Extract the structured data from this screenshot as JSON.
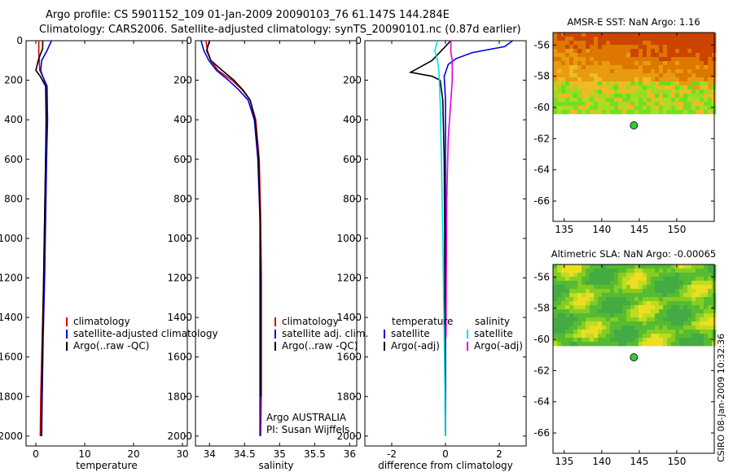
{
  "header": {
    "line1": "Argo profile: CS 5901152_109 01-Jan-2009 20090103_76 61.147S 144.284E",
    "line2": "Climatology: CARS2006. Satellite-adjusted climatology: synTS_20090101.nc (0.87d earlier)"
  },
  "footer": {
    "credit": "CSIRO 08-Jan-2009 10:32:36"
  },
  "colors": {
    "red": "#e00000",
    "blue": "#0000e0",
    "black": "#000000",
    "cyan": "#00e0e0",
    "magenta": "#e000e0",
    "marker": "#33cc33"
  },
  "chart_data": [
    {
      "id": "temperature",
      "type": "line",
      "xlabel": "temperature",
      "xlim": [
        -2,
        31
      ],
      "ylim": [
        0,
        2050
      ],
      "y_reversed": true,
      "xticks": [
        0,
        10,
        20,
        30
      ],
      "yticks": [
        0,
        200,
        400,
        600,
        800,
        1000,
        1200,
        1400,
        1600,
        1800,
        2000
      ],
      "legend": {
        "placement": "lower-right",
        "items": [
          "climatology",
          "satellite-adjusted climatology",
          "Argo(..raw -QC)"
        ]
      },
      "series": [
        {
          "name": "climatology",
          "color": "red",
          "x": [
            0.6,
            0.6,
            0.7,
            0.8,
            1.4,
            2.1,
            2.2,
            2.0,
            1.8,
            1.6,
            1.3,
            1.0,
            0.9
          ],
          "y": [
            0,
            60,
            100,
            150,
            180,
            230,
            400,
            600,
            900,
            1200,
            1500,
            1800,
            2000
          ]
        },
        {
          "name": "satellite-adjusted climatology",
          "color": "blue",
          "x": [
            3.2,
            2.3,
            1.2,
            1.0,
            1.4,
            2.3,
            2.4,
            2.2,
            2.0,
            1.8,
            1.5,
            1.3,
            1.2
          ],
          "y": [
            0,
            50,
            100,
            150,
            180,
            230,
            400,
            600,
            900,
            1200,
            1500,
            1800,
            2000
          ]
        },
        {
          "name": "Argo(..raw -QC)",
          "color": "black",
          "x": [
            1.4,
            1.4,
            0.6,
            0.0,
            0.9,
            2.0,
            2.1,
            2.0,
            1.8,
            1.6,
            1.4,
            1.2,
            1.1
          ],
          "y": [
            0,
            40,
            90,
            150,
            180,
            230,
            400,
            600,
            900,
            1200,
            1500,
            1800,
            2000
          ]
        }
      ]
    },
    {
      "id": "salinity",
      "type": "line",
      "xlabel": "salinity",
      "xlim": [
        33.8,
        36.1
      ],
      "ylim": [
        0,
        2050
      ],
      "y_reversed": true,
      "xticks": [
        34,
        34.5,
        35,
        35.5,
        36
      ],
      "xtick_labels": [
        "34",
        "34.5",
        "35",
        "35.5",
        "36"
      ],
      "yticks": [
        0,
        200,
        400,
        600,
        800,
        1000,
        1200,
        1400,
        1600,
        1800,
        2000
      ],
      "legend": {
        "placement": "lower-right",
        "items": [
          "climatology",
          "satellite adj. clim.",
          "Argo(..raw -QC)"
        ]
      },
      "annotation": {
        "line1": "Argo AUSTRALIA",
        "line2": "PI: Susan Wijffels"
      },
      "series": [
        {
          "name": "climatology",
          "color": "red",
          "x": [
            33.95,
            33.97,
            34.02,
            34.12,
            34.32,
            34.47,
            34.58,
            34.66,
            34.71,
            34.73,
            34.74,
            34.74,
            34.74,
            34.73
          ],
          "y": [
            0,
            50,
            100,
            150,
            200,
            250,
            300,
            400,
            600,
            900,
            1200,
            1500,
            1800,
            2000
          ]
        },
        {
          "name": "satellite adj. clim.",
          "color": "blue",
          "x": [
            33.88,
            33.92,
            33.99,
            34.1,
            34.27,
            34.42,
            34.55,
            34.64,
            34.69,
            34.72,
            34.72,
            34.72,
            34.72,
            34.72
          ],
          "y": [
            0,
            50,
            100,
            150,
            200,
            250,
            300,
            400,
            600,
            900,
            1200,
            1500,
            1800,
            2000
          ]
        },
        {
          "name": "Argo(..raw -QC)",
          "color": "black",
          "x": [
            34.0,
            33.96,
            34.02,
            34.18,
            34.35,
            34.48,
            34.58,
            34.65,
            34.7,
            34.72,
            34.73,
            34.73,
            34.73
          ],
          "y": [
            0,
            50,
            100,
            150,
            200,
            250,
            300,
            400,
            600,
            900,
            1200,
            1500,
            1800
          ]
        }
      ]
    },
    {
      "id": "difference",
      "type": "line",
      "xlabel": "difference from climatology",
      "xlim": [
        -3,
        3
      ],
      "ylim": [
        0,
        2050
      ],
      "y_reversed": true,
      "xticks": [
        -2,
        0,
        2
      ],
      "yticks": [
        0,
        200,
        400,
        600,
        800,
        1000,
        1200,
        1400,
        1600,
        1800,
        2000
      ],
      "legend": {
        "placement": "lower-center",
        "temperature_header": "temperature",
        "salinity_header": "salinity",
        "temperature_items": [
          "satellite",
          "Argo(-adj)"
        ],
        "salinity_items": [
          "satellite",
          "Argo(-adj)"
        ]
      },
      "series": [
        {
          "name": "temperature satellite",
          "color": "blue",
          "x": [
            2.5,
            2.2,
            1.0,
            0.4,
            0.1,
            -0.05,
            0.0,
            0.0,
            0.0,
            0.0,
            0.0
          ],
          "y": [
            0,
            30,
            60,
            90,
            120,
            180,
            300,
            600,
            1000,
            1500,
            2000
          ]
        },
        {
          "name": "temperature Argo(-adj)",
          "color": "black",
          "x": [
            0.2,
            -0.5,
            -1.3,
            -0.5,
            -0.2,
            -0.1,
            -0.05,
            -0.03,
            -0.02,
            -0.01
          ],
          "y": [
            0,
            100,
            160,
            180,
            200,
            300,
            600,
            1000,
            1500,
            1980
          ]
        },
        {
          "name": "salinity satellite",
          "color": "cyan",
          "x": [
            -0.3,
            -0.4,
            -0.3,
            -0.25,
            -0.2,
            -0.15,
            -0.1,
            -0.05,
            0.0
          ],
          "y": [
            0,
            50,
            100,
            150,
            300,
            600,
            1000,
            1500,
            2000
          ]
        },
        {
          "name": "salinity Argo(-adj)",
          "color": "magenta",
          "x": [
            0.2,
            0.2,
            0.25,
            0.25,
            0.2,
            0.1,
            0.05,
            0.03,
            0.02
          ],
          "y": [
            0,
            60,
            100,
            200,
            300,
            500,
            800,
            1200,
            1500
          ]
        }
      ]
    },
    {
      "id": "sst-map",
      "type": "heatmap",
      "title": "AMSR-E SST: NaN Argo: 1.16",
      "xlim": [
        133.5,
        155
      ],
      "ylim": [
        -67.3,
        -55.2
      ],
      "xticks": [
        135,
        140,
        145,
        150
      ],
      "yticks": [
        -56,
        -58,
        -60,
        -62,
        -64,
        -66
      ],
      "data_extent_lat": [
        -60.2,
        -55.2
      ],
      "palette": "sst",
      "argo_marker": {
        "lon": 144.28,
        "lat": -61.15
      }
    },
    {
      "id": "sla-map",
      "type": "heatmap",
      "title": "Altimetric SLA: NaN Argo: -0.00065",
      "xlim": [
        133.5,
        155
      ],
      "ylim": [
        -67.3,
        -55.2
      ],
      "xticks": [
        135,
        140,
        145,
        150
      ],
      "yticks": [
        -56,
        -58,
        -60,
        -62,
        -64,
        -66
      ],
      "data_extent_lat": [
        -60.2,
        -55.2
      ],
      "palette": "sla",
      "argo_marker": {
        "lon": 144.28,
        "lat": -61.15
      }
    }
  ]
}
